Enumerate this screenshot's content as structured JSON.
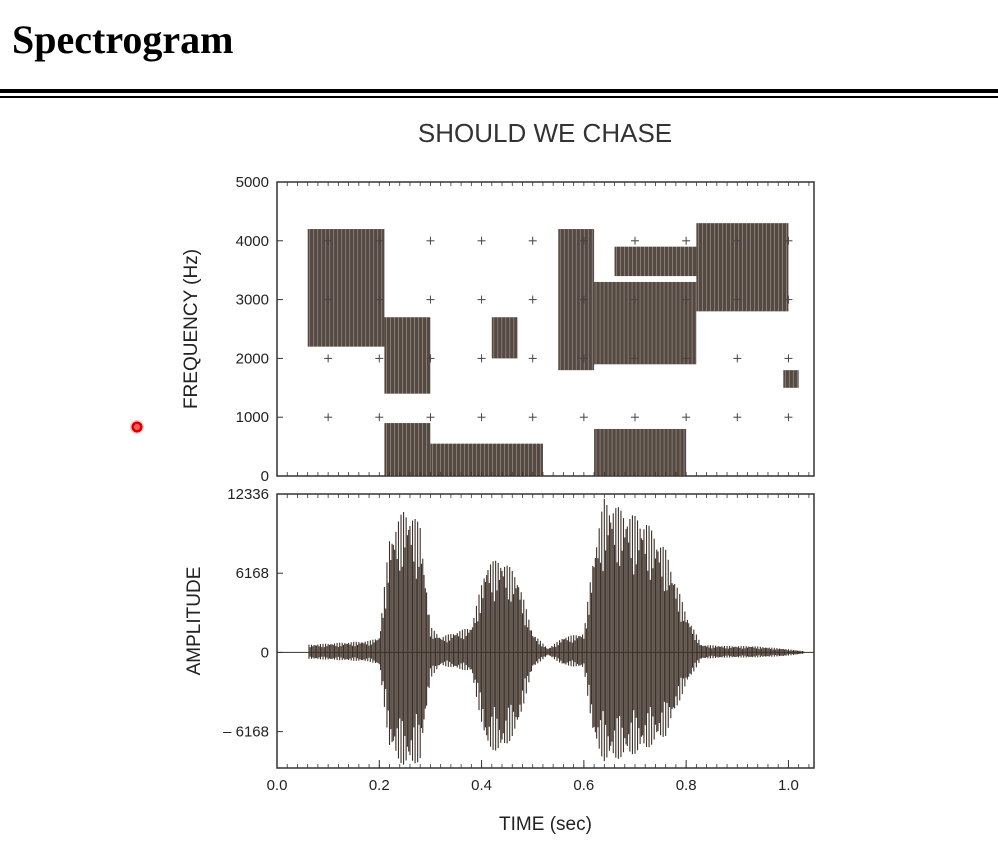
{
  "slide": {
    "title": "Spectrogram"
  },
  "colors": {
    "ink": "#3d3028",
    "frame": "#333333",
    "cursor": "#e00000"
  },
  "chart_data": [
    {
      "type": "heatmap",
      "title": "SHOULD WE CHASE",
      "xlabel": "",
      "ylabel": "FREQUENCY (Hz)",
      "xlim": [
        0.0,
        1.05
      ],
      "ylim": [
        0,
        5000
      ],
      "yticks": [
        0,
        1000,
        2000,
        3000,
        4000,
        5000
      ],
      "ytick_labels": [
        "0",
        "1000",
        "2000",
        "3000",
        "4000",
        "5000"
      ],
      "grid_marks": {
        "x": [
          0.1,
          0.2,
          0.3,
          0.4,
          0.5,
          0.6,
          0.7,
          0.8,
          0.9,
          1.0
        ],
        "y": [
          1000,
          2000,
          3000,
          4000
        ]
      },
      "energy_regions": [
        {
          "t0": 0.06,
          "t1": 0.21,
          "f0": 2200,
          "f1": 4200
        },
        {
          "t0": 0.21,
          "t1": 0.3,
          "f0": 1400,
          "f1": 2700
        },
        {
          "t0": 0.21,
          "t1": 0.3,
          "f0": 0,
          "f1": 900
        },
        {
          "t0": 0.3,
          "t1": 0.52,
          "f0": 0,
          "f1": 550
        },
        {
          "t0": 0.42,
          "t1": 0.47,
          "f0": 2000,
          "f1": 2700
        },
        {
          "t0": 0.55,
          "t1": 0.62,
          "f0": 1800,
          "f1": 4200
        },
        {
          "t0": 0.62,
          "t1": 0.8,
          "f0": 0,
          "f1": 800
        },
        {
          "t0": 0.62,
          "t1": 0.82,
          "f0": 1900,
          "f1": 3300
        },
        {
          "t0": 0.66,
          "t1": 0.82,
          "f0": 3400,
          "f1": 3900
        },
        {
          "t0": 0.82,
          "t1": 1.0,
          "f0": 2800,
          "f1": 4300
        },
        {
          "t0": 0.99,
          "t1": 1.02,
          "f0": 1500,
          "f1": 1800
        }
      ]
    },
    {
      "type": "line",
      "xlabel": "TIME (sec)",
      "ylabel": "AMPLITUDE",
      "xlim": [
        0.0,
        1.05
      ],
      "ylim": [
        -9000,
        12336
      ],
      "xticks": [
        0.0,
        0.2,
        0.4,
        0.6,
        0.8,
        1.0
      ],
      "xtick_labels": [
        "0.0",
        "0.2",
        "0.4",
        "0.6",
        "0.8",
        "1.0"
      ],
      "yticks": [
        12336,
        6168,
        0,
        -6168
      ],
      "ytick_labels": [
        "12336",
        "6168",
        "0",
        "– 6168"
      ],
      "envelope": {
        "t": [
          0.06,
          0.18,
          0.2,
          0.22,
          0.25,
          0.28,
          0.3,
          0.32,
          0.38,
          0.41,
          0.44,
          0.47,
          0.5,
          0.53,
          0.56,
          0.6,
          0.62,
          0.64,
          0.68,
          0.72,
          0.76,
          0.8,
          0.83,
          0.88,
          0.93,
          0.99,
          1.03
        ],
        "pos": [
          600,
          900,
          1200,
          9000,
          11300,
          10000,
          2000,
          1200,
          2000,
          7000,
          7300,
          6000,
          1500,
          300,
          1200,
          1500,
          8000,
          12000,
          11000,
          10300,
          8000,
          3000,
          600,
          500,
          500,
          300,
          100
        ],
        "neg": [
          -500,
          -700,
          -1000,
          -7500,
          -9000,
          -8500,
          -2000,
          -1000,
          -1500,
          -7500,
          -7800,
          -6000,
          -1200,
          -200,
          -1000,
          -1200,
          -7000,
          -8500,
          -8200,
          -7600,
          -6500,
          -2500,
          -500,
          -400,
          -400,
          -300,
          -100
        ]
      }
    }
  ]
}
